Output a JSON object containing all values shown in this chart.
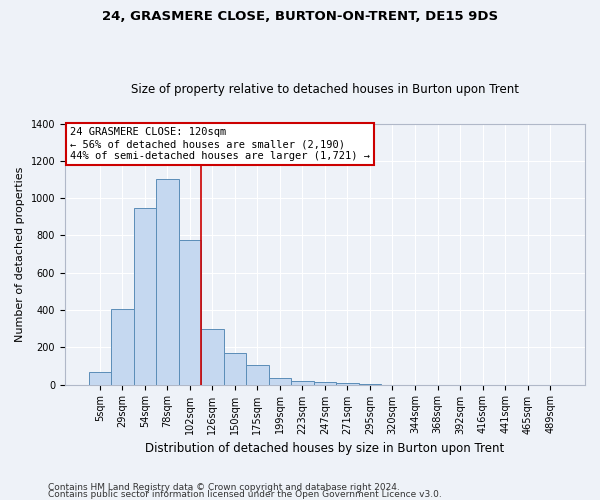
{
  "title_line1": "24, GRASMERE CLOSE, BURTON-ON-TRENT, DE15 9DS",
  "title_line2": "Size of property relative to detached houses in Burton upon Trent",
  "xlabel": "Distribution of detached houses by size in Burton upon Trent",
  "ylabel": "Number of detached properties",
  "footer_line1": "Contains HM Land Registry data © Crown copyright and database right 2024.",
  "footer_line2": "Contains public sector information licensed under the Open Government Licence v3.0.",
  "bar_labels": [
    "5sqm",
    "29sqm",
    "54sqm",
    "78sqm",
    "102sqm",
    "126sqm",
    "150sqm",
    "175sqm",
    "199sqm",
    "223sqm",
    "247sqm",
    "271sqm",
    "295sqm",
    "320sqm",
    "344sqm",
    "368sqm",
    "392sqm",
    "416sqm",
    "441sqm",
    "465sqm",
    "489sqm"
  ],
  "bar_values": [
    70,
    405,
    945,
    1100,
    775,
    300,
    168,
    105,
    35,
    20,
    15,
    10,
    5,
    0,
    0,
    0,
    0,
    0,
    0,
    0,
    0
  ],
  "bar_color": "#c5d8f0",
  "bar_edge_color": "#5b8db8",
  "vline_pos": 4.5,
  "vline_color": "#cc0000",
  "annotation_line1": "24 GRASMERE CLOSE: 120sqm",
  "annotation_line2": "← 56% of detached houses are smaller (2,190)",
  "annotation_line3": "44% of semi-detached houses are larger (1,721) →",
  "annotation_box_facecolor": "#ffffff",
  "annotation_box_edgecolor": "#cc0000",
  "ylim": [
    0,
    1400
  ],
  "yticks": [
    0,
    200,
    400,
    600,
    800,
    1000,
    1200,
    1400
  ],
  "background_color": "#eef2f8",
  "grid_color": "#ffffff",
  "title1_fontsize": 9.5,
  "title2_fontsize": 8.5,
  "ylabel_fontsize": 8.0,
  "xlabel_fontsize": 8.5,
  "tick_fontsize": 7.0,
  "annot_fontsize": 7.5,
  "footer_fontsize": 6.5
}
